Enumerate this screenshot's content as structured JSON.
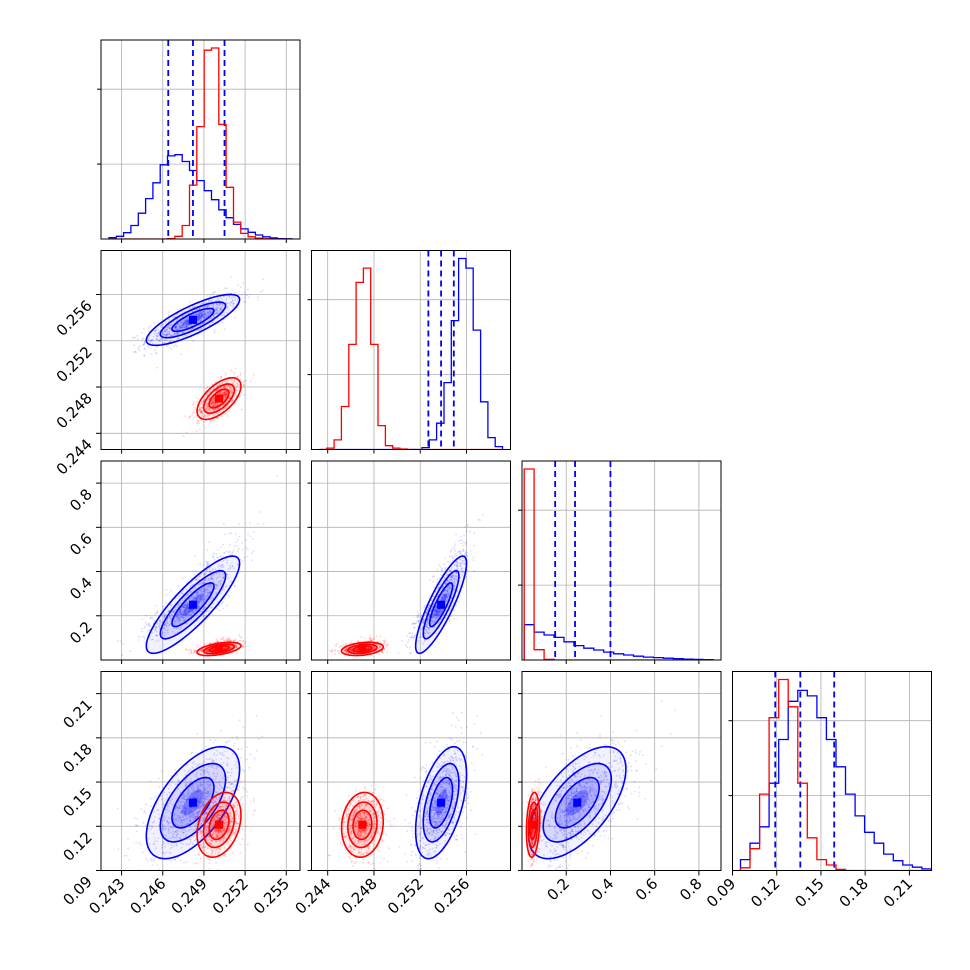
{
  "chart_data": {
    "type": "corner",
    "n_params": 4,
    "title": "",
    "params": [
      {
        "range": [
          0.2415,
          0.256
        ],
        "ticks": [
          0.243,
          0.246,
          0.249,
          0.252,
          0.255
        ],
        "tick_labels": [
          "0.243",
          "0.246",
          "0.249",
          "0.252",
          "0.255"
        ]
      },
      {
        "range": [
          0.2426,
          0.2598
        ],
        "ticks": [
          0.244,
          0.248,
          0.252,
          0.256
        ],
        "tick_labels": [
          "0.244",
          "0.248",
          "0.252",
          "0.256"
        ]
      },
      {
        "range": [
          0.0,
          0.9
        ],
        "ticks": [
          0.2,
          0.4,
          0.6,
          0.8
        ],
        "tick_labels": [
          "0.2",
          "0.4",
          "0.6",
          "0.8"
        ]
      },
      {
        "range": [
          0.09,
          0.225
        ],
        "ticks": [
          0.09,
          0.12,
          0.15,
          0.18,
          0.21
        ],
        "tick_labels": [
          "0.09",
          "0.12",
          "0.15",
          "0.18",
          "0.21"
        ]
      }
    ],
    "series": [
      {
        "color": "#0000ff",
        "means": [
          0.2482,
          0.2538,
          0.25,
          0.136
        ],
        "stds": [
          0.0017,
          0.0011,
          0.11,
          0.019
        ],
        "correlations": [
          [
            0,
            1,
            0.8
          ],
          [
            0,
            2,
            0.85
          ],
          [
            1,
            2,
            0.85
          ],
          [
            0,
            3,
            0.6
          ],
          [
            1,
            3,
            0.5
          ],
          [
            2,
            3,
            0.6
          ]
        ],
        "quantiles": [
          [
            0.2464,
            0.2482,
            0.2505
          ],
          [
            0.2527,
            0.2538,
            0.2549
          ],
          [
            0.15,
            0.24,
            0.4
          ],
          [
            0.119,
            0.136,
            0.159
          ]
        ],
        "histograms": [
          [
            0.6,
            1.2,
            2.8,
            6,
            11.5,
            18,
            25,
            33,
            37,
            37.5,
            34.5,
            30.5,
            26,
            21.5,
            17.5,
            13,
            9.5,
            6.5,
            4.5,
            3,
            1.8,
            1,
            0.5,
            0.2,
            0.1
          ],
          [
            0,
            0,
            0,
            0,
            0,
            0,
            0,
            0,
            0,
            0,
            0,
            0,
            0,
            0,
            0.4,
            2,
            5.5,
            14,
            27,
            40,
            38,
            25,
            10,
            2.5,
            0.6
          ],
          [
            12,
            9.5,
            8.5,
            7.7,
            6.2,
            4.9,
            4,
            3.4,
            2.7,
            2.1,
            1.7,
            1.3,
            1,
            0.8,
            0.6,
            0.45,
            0.3,
            0.2,
            0.15
          ],
          [
            2,
            5,
            8,
            16,
            24,
            31,
            33,
            32,
            28,
            24,
            19,
            14,
            10,
            7,
            5,
            3,
            1.8,
            1,
            0.6,
            0.3
          ]
        ]
      },
      {
        "color": "#ff0000",
        "means": [
          0.2501,
          0.247,
          0.05,
          0.121
        ],
        "stds": [
          0.0008,
          0.0009,
          0.015,
          0.011
        ],
        "correlations": [
          [
            0,
            1,
            0.6
          ],
          [
            0,
            2,
            0.5
          ],
          [
            1,
            2,
            0.3
          ],
          [
            0,
            3,
            0.3
          ],
          [
            1,
            3,
            0.1
          ],
          [
            2,
            3,
            0.2
          ]
        ],
        "quantiles": [],
        "histograms": [
          [
            0,
            0,
            0,
            0,
            0,
            0,
            0,
            0,
            0.2,
            1.2,
            6,
            24,
            50,
            84,
            85,
            51,
            23,
            7.5,
            2.5,
            1,
            0.4,
            0.1,
            0,
            0,
            0
          ],
          [
            0,
            0.3,
            2,
            9,
            22,
            35,
            38,
            22,
            5,
            0.8,
            0.3,
            0.1,
            0,
            0,
            0,
            0,
            0,
            0,
            0,
            0,
            0,
            0,
            0,
            0,
            0
          ],
          [
            65,
            3.5,
            0.2,
            0,
            0,
            0,
            0,
            0,
            0,
            0,
            0,
            0,
            0,
            0,
            0,
            0,
            0,
            0,
            0
          ],
          [
            0.5,
            4,
            14,
            28,
            35,
            30,
            16,
            6,
            2,
            1,
            0.2,
            0,
            0,
            0,
            0,
            0,
            0,
            0,
            0,
            0
          ]
        ]
      }
    ],
    "quantile_lines": "dashed",
    "grid": true
  }
}
